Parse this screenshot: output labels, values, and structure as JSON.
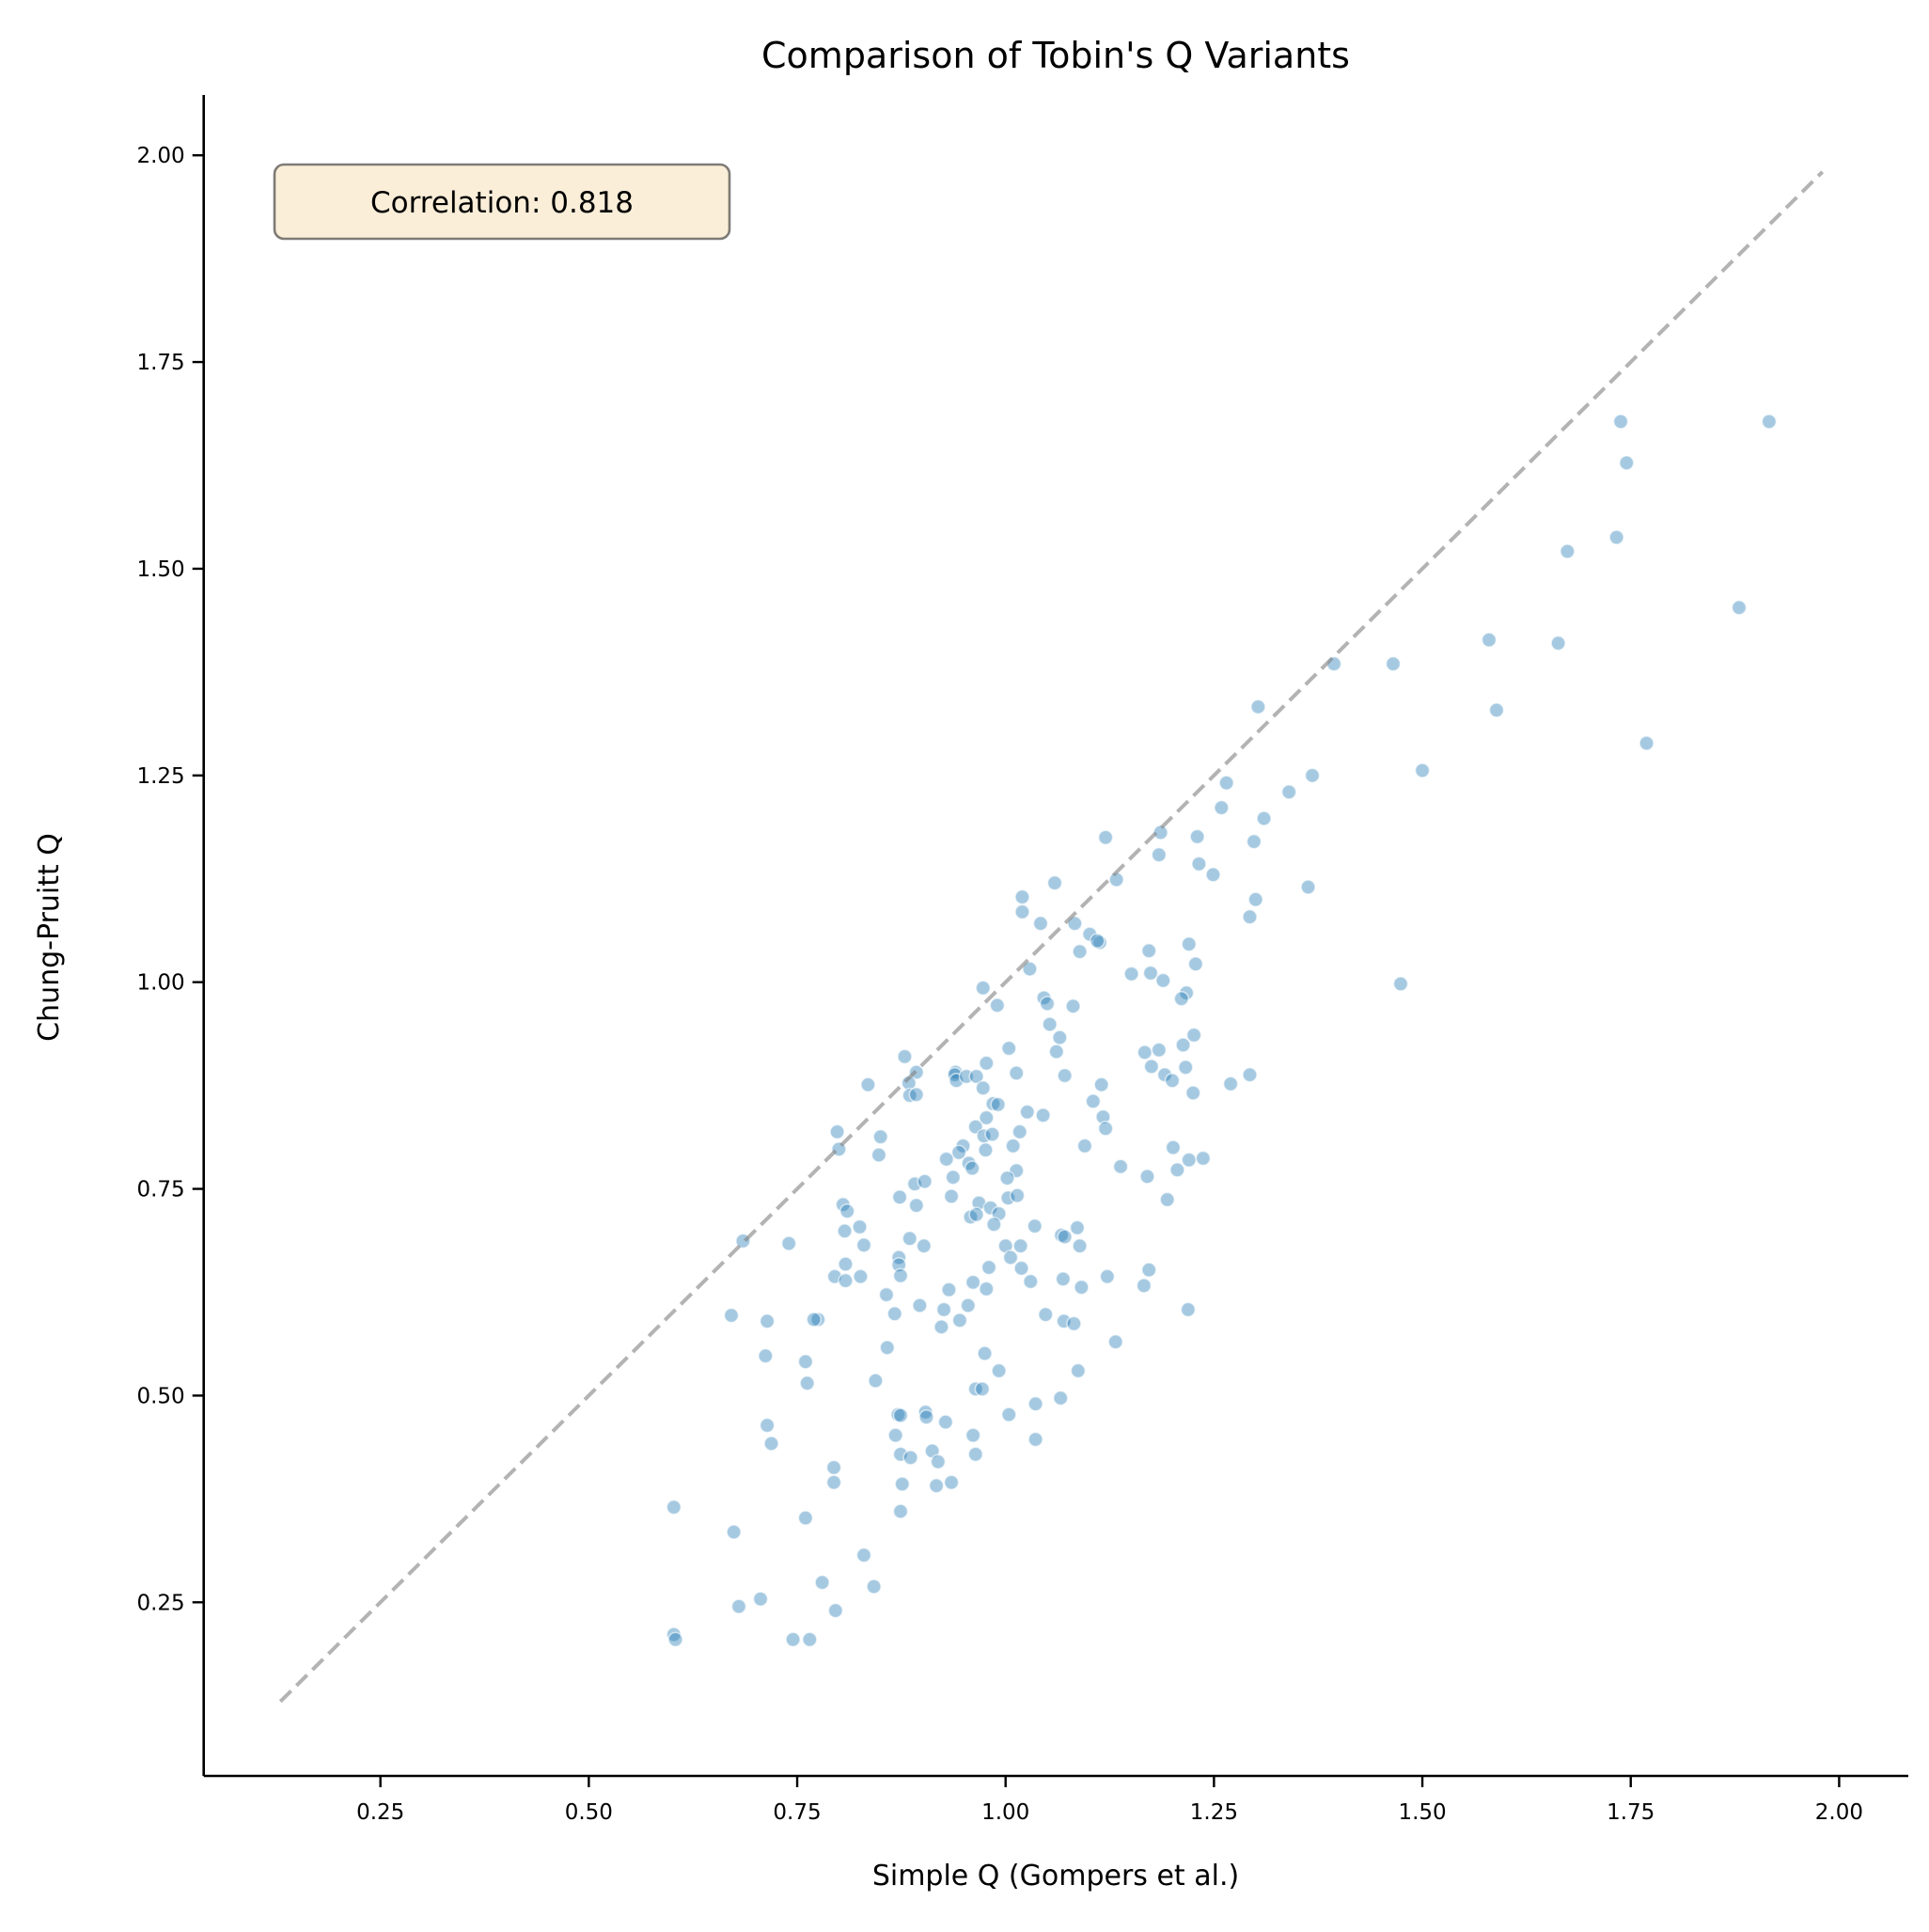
{
  "chart_data": {
    "type": "scatter",
    "title": "Comparison of Tobin's Q Variants",
    "xlabel": "Simple Q (Gompers et al.)",
    "ylabel": "Chung-Pruitt Q",
    "xlim": [
      0.038,
      2.083
    ],
    "ylim": [
      0.04,
      2.073
    ],
    "xticks": [
      0.25,
      0.5,
      0.75,
      1.0,
      1.25,
      1.5,
      1.75,
      2.0
    ],
    "xtick_labels": [
      "0.25",
      "0.50",
      "0.75",
      "1.00",
      "1.25",
      "1.50",
      "1.75",
      "2.00"
    ],
    "yticks": [
      0.25,
      0.5,
      0.75,
      1.0,
      1.25,
      1.5,
      1.75,
      2.0
    ],
    "ytick_labels": [
      "0.25",
      "0.50",
      "0.75",
      "1.00",
      "1.25",
      "1.50",
      "1.75",
      "2.00"
    ],
    "grid": false,
    "annotation": "Correlation: 0.818",
    "reference_line": {
      "type": "y=x",
      "style": "dashed",
      "x": [
        0.13,
        1.98
      ],
      "y": [
        0.13,
        1.98
      ],
      "color": "#808080"
    },
    "marker_color": "#1f77b4",
    "marker_alpha": 0.4,
    "points": [
      [
        1.738,
        1.678
      ],
      [
        1.916,
        1.678
      ],
      [
        1.745,
        1.628
      ],
      [
        1.733,
        1.538
      ],
      [
        1.674,
        1.521
      ],
      [
        1.88,
        1.453
      ],
      [
        1.58,
        1.414
      ],
      [
        1.663,
        1.41
      ],
      [
        1.394,
        1.385
      ],
      [
        1.465,
        1.385
      ],
      [
        1.589,
        1.329
      ],
      [
        1.769,
        1.289
      ],
      [
        1.5,
        1.256
      ],
      [
        1.368,
        1.25
      ],
      [
        1.303,
        1.333
      ],
      [
        1.265,
        1.241
      ],
      [
        1.34,
        1.23
      ],
      [
        1.259,
        1.211
      ],
      [
        1.31,
        1.198
      ],
      [
        1.12,
        1.175
      ],
      [
        1.186,
        1.181
      ],
      [
        1.23,
        1.176
      ],
      [
        1.298,
        1.17
      ],
      [
        1.184,
        1.154
      ],
      [
        1.232,
        1.143
      ],
      [
        1.249,
        1.13
      ],
      [
        1.059,
        1.12
      ],
      [
        1.133,
        1.124
      ],
      [
        1.363,
        1.115
      ],
      [
        1.3,
        1.1
      ],
      [
        1.293,
        1.079
      ],
      [
        1.042,
        1.071
      ],
      [
        1.083,
        1.071
      ],
      [
        1.101,
        1.058
      ],
      [
        1.113,
        1.048
      ],
      [
        1.11,
        1.05
      ],
      [
        1.089,
        1.037
      ],
      [
        1.172,
        1.038
      ],
      [
        1.22,
        1.046
      ],
      [
        1.228,
        1.022
      ],
      [
        1.151,
        1.01
      ],
      [
        1.174,
        1.011
      ],
      [
        1.189,
        1.002
      ],
      [
        1.474,
        0.998
      ],
      [
        1.046,
        0.981
      ],
      [
        1.05,
        0.974
      ],
      [
        1.081,
        0.971
      ],
      [
        1.217,
        0.987
      ],
      [
        1.211,
        0.98
      ],
      [
        1.053,
        0.949
      ],
      [
        1.065,
        0.933
      ],
      [
        1.061,
        0.916
      ],
      [
        1.167,
        0.915
      ],
      [
        1.184,
        0.918
      ],
      [
        1.213,
        0.924
      ],
      [
        1.226,
        0.936
      ],
      [
        1.175,
        0.898
      ],
      [
        1.216,
        0.897
      ],
      [
        1.191,
        0.888
      ],
      [
        1.2,
        0.881
      ],
      [
        1.225,
        0.866
      ],
      [
        1.27,
        0.877
      ],
      [
        1.293,
        0.888
      ],
      [
        1.071,
        0.887
      ],
      [
        1.115,
        0.876
      ],
      [
        1.105,
        0.856
      ],
      [
        1.117,
        0.837
      ],
      [
        1.12,
        0.823
      ],
      [
        1.045,
        0.839
      ],
      [
        1.095,
        0.802
      ],
      [
        1.201,
        0.8
      ],
      [
        1.22,
        0.785
      ],
      [
        1.237,
        0.787
      ],
      [
        1.206,
        0.773
      ],
      [
        1.138,
        0.777
      ],
      [
        1.17,
        0.765
      ],
      [
        1.194,
        0.737
      ],
      [
        1.02,
        1.103
      ],
      [
        1.02,
        1.085
      ],
      [
        1.029,
        1.016
      ],
      [
        0.973,
        0.993
      ],
      [
        0.99,
        0.972
      ],
      [
        1.004,
        0.92
      ],
      [
        0.879,
        0.91
      ],
      [
        0.977,
        0.902
      ],
      [
        1.013,
        0.89
      ],
      [
        0.893,
        0.891
      ],
      [
        0.94,
        0.891
      ],
      [
        0.939,
        0.888
      ],
      [
        0.941,
        0.881
      ],
      [
        0.953,
        0.886
      ],
      [
        0.965,
        0.886
      ],
      [
        0.835,
        0.876
      ],
      [
        0.884,
        0.878
      ],
      [
        0.973,
        0.872
      ],
      [
        0.885,
        0.863
      ],
      [
        0.893,
        0.864
      ],
      [
        0.985,
        0.853
      ],
      [
        0.991,
        0.852
      ],
      [
        1.026,
        0.843
      ],
      [
        0.977,
        0.836
      ],
      [
        0.964,
        0.825
      ],
      [
        0.974,
        0.814
      ],
      [
        0.984,
        0.816
      ],
      [
        1.017,
        0.819
      ],
      [
        0.798,
        0.819
      ],
      [
        0.8,
        0.798
      ],
      [
        0.85,
        0.813
      ],
      [
        0.848,
        0.791
      ],
      [
        0.976,
        0.797
      ],
      [
        1.009,
        0.802
      ],
      [
        0.949,
        0.802
      ],
      [
        0.944,
        0.794
      ],
      [
        0.929,
        0.786
      ],
      [
        0.956,
        0.781
      ],
      [
        0.96,
        0.775
      ],
      [
        1.013,
        0.772
      ],
      [
        1.002,
        0.763
      ],
      [
        0.937,
        0.764
      ],
      [
        0.891,
        0.756
      ],
      [
        0.903,
        0.759
      ],
      [
        0.935,
        0.741
      ],
      [
        0.873,
        0.74
      ],
      [
        0.893,
        0.73
      ],
      [
        1.003,
        0.739
      ],
      [
        1.014,
        0.742
      ],
      [
        0.968,
        0.733
      ],
      [
        0.982,
        0.727
      ],
      [
        0.992,
        0.72
      ],
      [
        0.958,
        0.716
      ],
      [
        0.965,
        0.719
      ],
      [
        0.805,
        0.731
      ],
      [
        0.81,
        0.723
      ],
      [
        0.986,
        0.707
      ],
      [
        1.035,
        0.705
      ],
      [
        0.825,
        0.704
      ],
      [
        0.807,
        0.699
      ],
      [
        1.067,
        0.694
      ],
      [
        1.071,
        0.692
      ],
      [
        1.086,
        0.703
      ],
      [
        1.089,
        0.681
      ],
      [
        1.069,
        0.641
      ],
      [
        1.091,
        0.631
      ],
      [
        1.122,
        0.644
      ],
      [
        1.172,
        0.652
      ],
      [
        1.166,
        0.633
      ],
      [
        1.219,
        0.604
      ],
      [
        1.048,
        0.598
      ],
      [
        1.07,
        0.59
      ],
      [
        1.082,
        0.587
      ],
      [
        1.132,
        0.565
      ],
      [
        1.087,
        0.53
      ],
      [
        1.066,
        0.497
      ],
      [
        1.036,
        0.49
      ],
      [
        1.036,
        0.447
      ],
      [
        0.685,
        0.687
      ],
      [
        0.74,
        0.684
      ],
      [
        0.83,
        0.682
      ],
      [
        0.885,
        0.69
      ],
      [
        0.902,
        0.681
      ],
      [
        1.0,
        0.681
      ],
      [
        1.018,
        0.681
      ],
      [
        1.006,
        0.667
      ],
      [
        0.872,
        0.667
      ],
      [
        0.872,
        0.658
      ],
      [
        0.874,
        0.645
      ],
      [
        0.808,
        0.659
      ],
      [
        0.795,
        0.644
      ],
      [
        0.808,
        0.639
      ],
      [
        0.826,
        0.644
      ],
      [
        0.98,
        0.655
      ],
      [
        1.019,
        0.654
      ],
      [
        1.03,
        0.638
      ],
      [
        0.961,
        0.637
      ],
      [
        0.977,
        0.629
      ],
      [
        0.932,
        0.628
      ],
      [
        0.857,
        0.622
      ],
      [
        0.897,
        0.609
      ],
      [
        0.926,
        0.604
      ],
      [
        0.955,
        0.609
      ],
      [
        0.867,
        0.599
      ],
      [
        0.945,
        0.591
      ],
      [
        0.923,
        0.583
      ],
      [
        0.671,
        0.597
      ],
      [
        0.714,
        0.59
      ],
      [
        0.775,
        0.592
      ],
      [
        0.77,
        0.592
      ],
      [
        0.858,
        0.558
      ],
      [
        0.712,
        0.548
      ],
      [
        0.76,
        0.541
      ],
      [
        0.762,
        0.515
      ],
      [
        0.844,
        0.518
      ],
      [
        0.975,
        0.551
      ],
      [
        0.992,
        0.53
      ],
      [
        0.964,
        0.508
      ],
      [
        0.972,
        0.508
      ],
      [
        0.871,
        0.477
      ],
      [
        0.874,
        0.476
      ],
      [
        0.904,
        0.48
      ],
      [
        0.905,
        0.474
      ],
      [
        0.928,
        0.468
      ],
      [
        1.004,
        0.477
      ],
      [
        0.868,
        0.452
      ],
      [
        0.961,
        0.452
      ],
      [
        0.964,
        0.429
      ],
      [
        0.874,
        0.429
      ],
      [
        0.886,
        0.425
      ],
      [
        0.912,
        0.433
      ],
      [
        0.919,
        0.42
      ],
      [
        0.714,
        0.464
      ],
      [
        0.719,
        0.442
      ],
      [
        0.794,
        0.413
      ],
      [
        0.794,
        0.395
      ],
      [
        0.876,
        0.393
      ],
      [
        0.917,
        0.391
      ],
      [
        0.935,
        0.395
      ],
      [
        0.874,
        0.36
      ],
      [
        0.602,
        0.365
      ],
      [
        0.76,
        0.352
      ],
      [
        0.674,
        0.335
      ],
      [
        0.83,
        0.307
      ],
      [
        0.78,
        0.274
      ],
      [
        0.842,
        0.269
      ],
      [
        0.706,
        0.254
      ],
      [
        0.68,
        0.245
      ],
      [
        0.796,
        0.24
      ],
      [
        0.602,
        0.211
      ],
      [
        0.604,
        0.205
      ],
      [
        0.745,
        0.205
      ],
      [
        0.765,
        0.205
      ]
    ]
  }
}
